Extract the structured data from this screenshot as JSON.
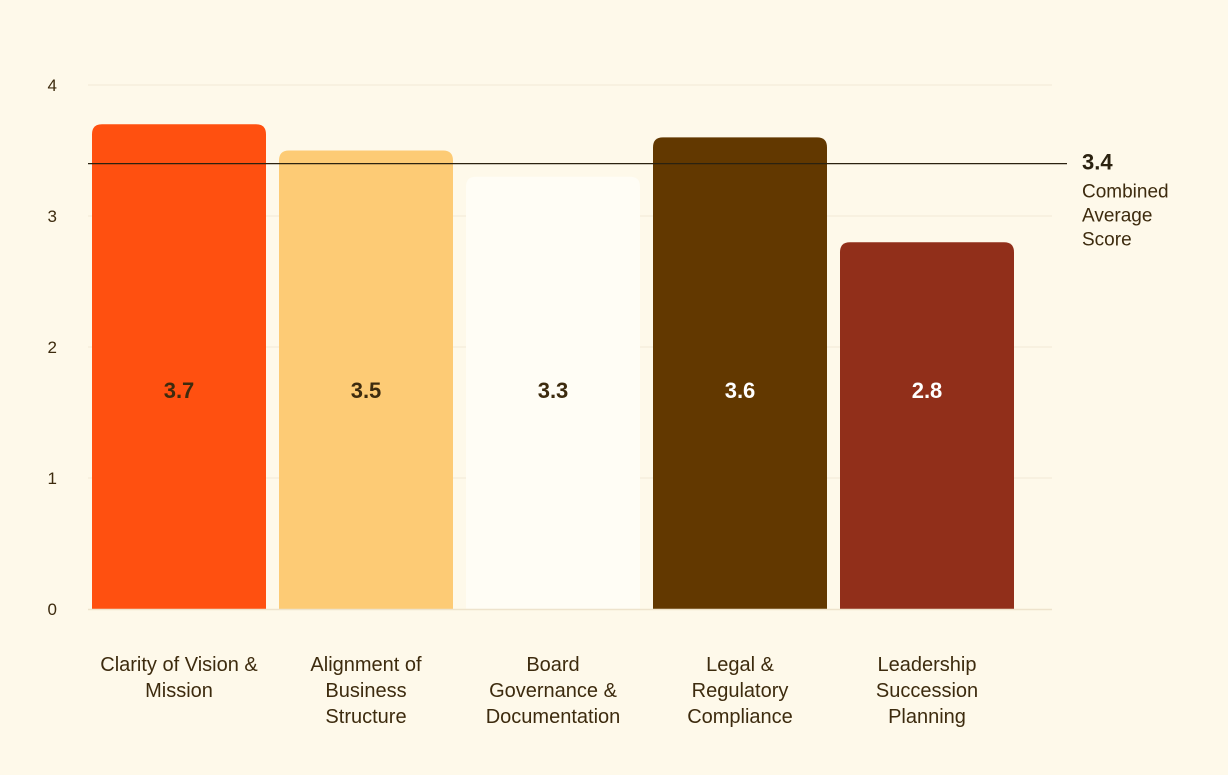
{
  "chart_data": {
    "type": "bar",
    "categories": [
      "Clarity of Vision & Mission",
      "Alignment of Business Structure",
      "Board Governance & Documentation",
      "Legal & Regulatory Compliance",
      "Leadership Succession Planning"
    ],
    "category_label_lines": [
      [
        "Clarity of Vision &",
        "Mission"
      ],
      [
        "Alignment of",
        "Business",
        "Structure"
      ],
      [
        "Board",
        "Governance &",
        "Documentation"
      ],
      [
        "Legal &",
        "Regulatory",
        "Compliance"
      ],
      [
        "Leadership",
        "Succession",
        "Planning"
      ]
    ],
    "values": [
      3.7,
      3.5,
      3.3,
      3.6,
      2.8
    ],
    "value_labels": [
      "3.7",
      "3.5",
      "3.3",
      "3.6",
      "2.8"
    ],
    "bar_colors": [
      "#FF5010",
      "#FDCB75",
      "#FFFDF5",
      "#623800",
      "#912F1A"
    ],
    "value_label_colors": [
      "#3D2B0E",
      "#3D2B0E",
      "#3D2B0E",
      "#FFFFFF",
      "#FFFFFF"
    ],
    "ylim": [
      0,
      4
    ],
    "yticks": [
      0,
      1,
      2,
      3,
      4
    ],
    "ytick_labels": [
      "0",
      "1",
      "2",
      "3",
      "4"
    ],
    "grid": true,
    "reference_line": {
      "value": 3.4,
      "value_label": "3.4",
      "label_lines": [
        "Combined",
        "Average",
        "Score"
      ],
      "color": "#2B2210"
    },
    "title": "",
    "xlabel": "",
    "ylabel": ""
  }
}
